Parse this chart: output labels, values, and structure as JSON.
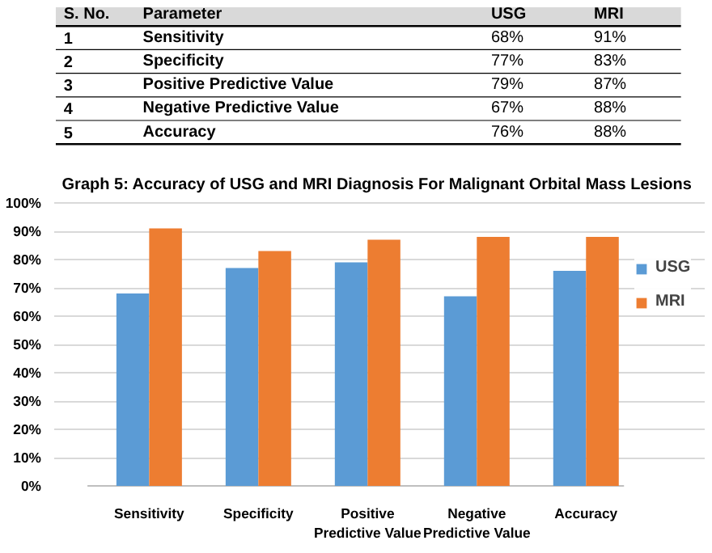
{
  "chart_data": {
    "type": "bar",
    "title": "Graph 5: Accuracy of USG and MRI Diagnosis For Malignant Orbital Mass Lesions",
    "categories": [
      "Sensitivity",
      "Specificity",
      "Positive Predictive Value",
      "Negative Predictive Value",
      "Accuracy"
    ],
    "series": [
      {
        "name": "USG",
        "color": "#5b9bd5",
        "values": [
          68,
          77,
          79,
          67,
          76
        ]
      },
      {
        "name": "MRI",
        "color": "#ed7d31",
        "values": [
          91,
          83,
          87,
          88,
          88
        ]
      }
    ],
    "ylim": [
      0,
      100
    ],
    "yticks": [
      {
        "value": 0,
        "label": "0%"
      },
      {
        "value": 10,
        "label": "10%"
      },
      {
        "value": 20,
        "label": "20%"
      },
      {
        "value": 30,
        "label": "30%"
      },
      {
        "value": 40,
        "label": "40%"
      },
      {
        "value": 50,
        "label": "50%"
      },
      {
        "value": 60,
        "label": "60%"
      },
      {
        "value": 70,
        "label": "70%"
      },
      {
        "value": 80,
        "label": "80%"
      },
      {
        "value": 90,
        "label": "90%"
      },
      {
        "value": 100,
        "label": "100%"
      }
    ],
    "grid": "y",
    "legend": "right",
    "annotations": [
      "S. No.",
      "Parameter",
      "1",
      "2",
      "3",
      "4",
      "5",
      "68%",
      "91%",
      "77%",
      "83%",
      "79%",
      "87%",
      "67%",
      "88%",
      "76%",
      "88%"
    ]
  }
}
